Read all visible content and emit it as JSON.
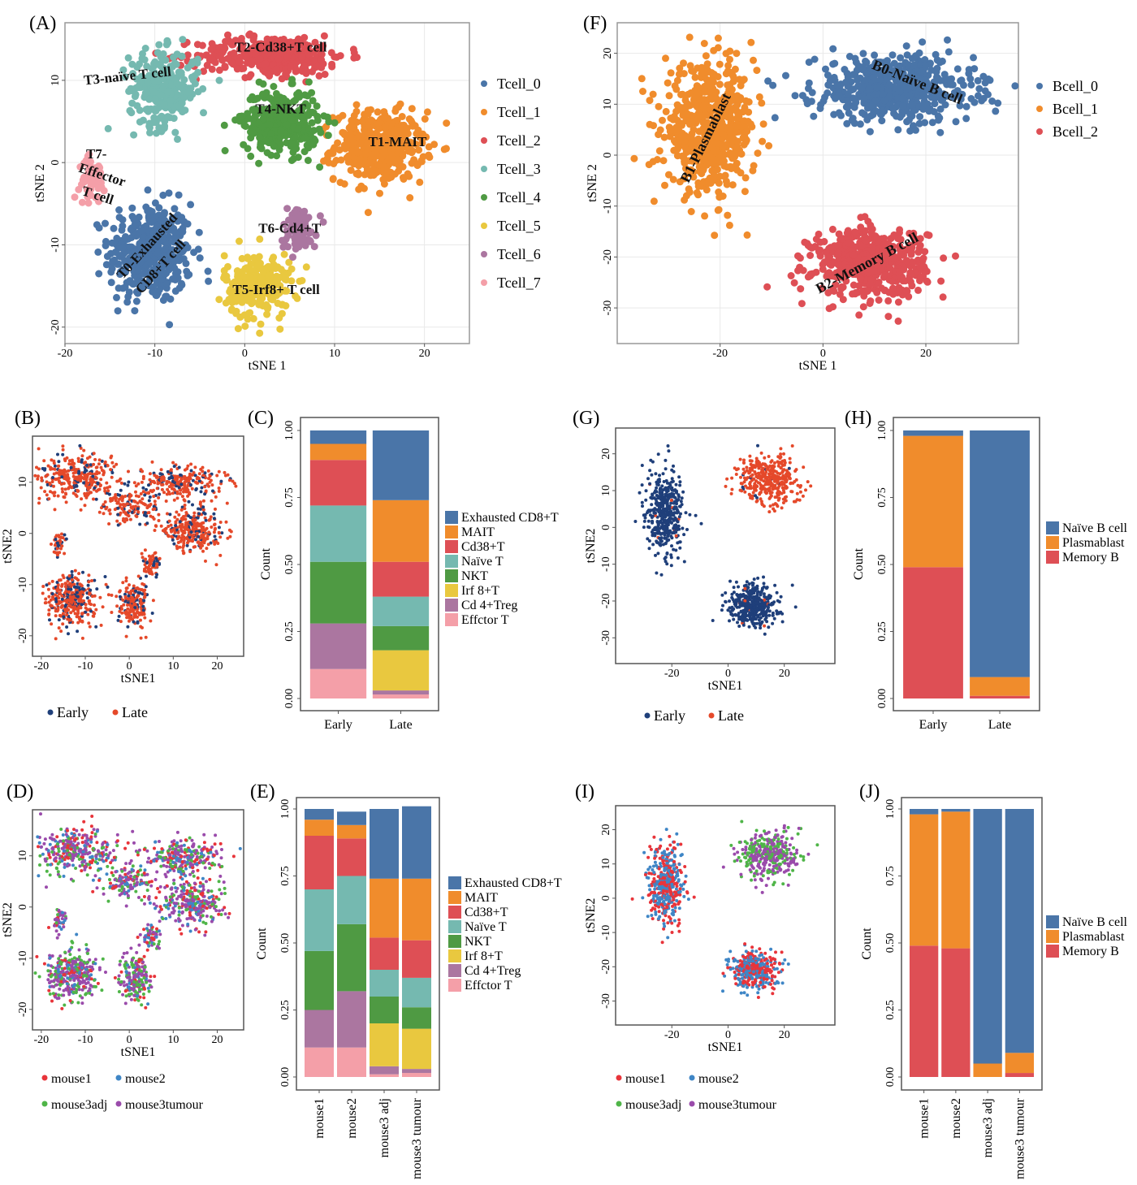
{
  "colors": {
    "tcell": [
      "#4a75a8",
      "#f08c2c",
      "#de4f55",
      "#75b9b0",
      "#4f9a43",
      "#e9c83f",
      "#ab76a0",
      "#f49fa8"
    ],
    "bcell": [
      "#4a75a8",
      "#f08c2c",
      "#de4f55"
    ],
    "early": "#1f3f7a",
    "late": "#e5492a",
    "mouse": [
      "#e8343a",
      "#3f86c6",
      "#4fb548",
      "#9a4bab"
    ]
  },
  "chart_data": [
    {
      "panel": "(A)",
      "type": "scatter",
      "xlabel": "tSNE 1",
      "ylabel": "tSNE 2",
      "xlim": [
        -20,
        25
      ],
      "ylim": [
        -22,
        17
      ],
      "xticks": [
        -20,
        -10,
        0,
        10,
        20
      ],
      "yticks": [
        -20,
        -10,
        0,
        10
      ],
      "legend": [
        "Tcell_0",
        "Tcell_1",
        "Tcell_2",
        "Tcell_3",
        "Tcell_4",
        "Tcell_5",
        "Tcell_6",
        "Tcell_7"
      ],
      "legend_position": "right",
      "clusters": [
        {
          "series": 0,
          "name": "Tcell_0",
          "label": "T0-Exhausted CD8+T cell",
          "center": [
            -10.5,
            -11
          ],
          "spread": [
            4.2,
            5.5
          ],
          "n": 420
        },
        {
          "series": 1,
          "name": "Tcell_1",
          "label": "T1-MAIT",
          "center": [
            15,
            2
          ],
          "spread": [
            4.5,
            3.8
          ],
          "n": 420
        },
        {
          "series": 2,
          "name": "Tcell_2",
          "label": "T2-Cd38+T cell",
          "center": [
            3,
            13
          ],
          "spread": [
            7.5,
            2.2
          ],
          "n": 360
        },
        {
          "series": 3,
          "name": "Tcell_3",
          "label": "T3-naïve T cell",
          "center": [
            -9,
            9
          ],
          "spread": [
            3.5,
            4.2
          ],
          "n": 260
        },
        {
          "series": 4,
          "name": "Tcell_4",
          "label": "T4-NKT",
          "center": [
            4,
            5
          ],
          "spread": [
            3.8,
            3.5
          ],
          "n": 320
        },
        {
          "series": 5,
          "name": "Tcell_5",
          "label": "T5-Irf8+ T cell",
          "center": [
            1.5,
            -15
          ],
          "spread": [
            3.4,
            3.6
          ],
          "n": 230
        },
        {
          "series": 6,
          "name": "Tcell_6",
          "label": "T6-Cd4+T",
          "center": [
            6,
            -8
          ],
          "spread": [
            1.8,
            2.4
          ],
          "n": 90
        },
        {
          "series": 7,
          "name": "Tcell_7",
          "label": "T7-Effector T cell",
          "center": [
            -17,
            -2
          ],
          "spread": [
            1.3,
            2.3
          ],
          "n": 60
        }
      ],
      "labels": [
        {
          "text": "T3-naïve T cell",
          "at": [
            -13,
            10
          ],
          "rotate": -6
        },
        {
          "text": "T2-Cd38+T cell",
          "at": [
            4,
            13.5
          ],
          "rotate": 0
        },
        {
          "text": "T4-NKT",
          "at": [
            4,
            6
          ],
          "rotate": 0
        },
        {
          "text": "T1-MAIT",
          "at": [
            17,
            2
          ],
          "rotate": 0
        },
        {
          "text": "T7-",
          "at": [
            -16.5,
            0.5
          ],
          "rotate": 0
        },
        {
          "text": "Effector",
          "at": [
            -16,
            -2
          ],
          "rotate": 18
        },
        {
          "text": "T cell",
          "at": [
            -16.5,
            -4.5
          ],
          "rotate": 18
        },
        {
          "text": "T6-Cd4+T",
          "at": [
            5,
            -8.5
          ],
          "rotate": 0
        },
        {
          "text": "T0-Exhausted",
          "at": [
            -10.5,
            -10.5
          ],
          "rotate": -48
        },
        {
          "text": "CD8+T cell",
          "at": [
            -9,
            -13
          ],
          "rotate": -48
        },
        {
          "text": "T5-Irf8+ T cell",
          "at": [
            3.5,
            -16
          ],
          "rotate": 0
        }
      ]
    },
    {
      "panel": "(F)",
      "type": "scatter",
      "xlabel": "tSNE 1",
      "ylabel": "tSNE 2",
      "xlim": [
        -40,
        38
      ],
      "ylim": [
        -37,
        26
      ],
      "xticks": [
        -20,
        0,
        20
      ],
      "yticks": [
        -30,
        -20,
        -10,
        0,
        10,
        20
      ],
      "legend": [
        "Bcell_0",
        "Bcell_1",
        "Bcell_2"
      ],
      "legend_position": "right",
      "clusters": [
        {
          "series": 0,
          "name": "Bcell_0",
          "label": "B0-Naïve B cell",
          "center": [
            14,
            13
          ],
          "spread": [
            14,
            6
          ],
          "n": 560
        },
        {
          "series": 1,
          "name": "Bcell_1",
          "label": "B1-Plasmablast",
          "center": [
            -22,
            5
          ],
          "spread": [
            8,
            11
          ],
          "n": 560
        },
        {
          "series": 2,
          "name": "Bcell_2",
          "label": "B2-Memory B cell",
          "center": [
            9,
            -21
          ],
          "spread": [
            10,
            6
          ],
          "n": 520
        }
      ],
      "labels": [
        {
          "text": "B0-Naïve B cell",
          "at": [
            18,
            13.5
          ],
          "rotate": 22
        },
        {
          "text": "B1-Plasmablast",
          "at": [
            -22,
            3
          ],
          "rotate": -64
        },
        {
          "text": "B2-Memory B cell",
          "at": [
            9,
            -22
          ],
          "rotate": -28
        }
      ]
    },
    {
      "panel": "(B)",
      "type": "scatter",
      "xlabel": "tSNE1",
      "ylabel": "tSNE2",
      "xlim": [
        -22,
        26
      ],
      "ylim": [
        -24,
        19
      ],
      "xticks": [
        -20,
        -10,
        0,
        10,
        20
      ],
      "yticks": [
        -20,
        -10,
        0,
        10
      ],
      "legend": [
        "Early",
        "Late"
      ],
      "legend_position": "bottom"
    },
    {
      "panel": "(C)",
      "type": "bar",
      "xlabel": "",
      "ylabel": "Count",
      "ylim": [
        0,
        1
      ],
      "yticks": [
        "0.00",
        "0.25",
        "0.50",
        "0.75",
        "1.00"
      ],
      "categories": [
        "Early",
        "Late"
      ],
      "legend_position": "right",
      "series": [
        {
          "name": "Exhausted CD8+T",
          "values": [
            0.05,
            0.26
          ]
        },
        {
          "name": "MAIT",
          "values": [
            0.06,
            0.23
          ]
        },
        {
          "name": "Cd38+T",
          "values": [
            0.17,
            0.13
          ]
        },
        {
          "name": "Naïve T",
          "values": [
            0.21,
            0.11
          ]
        },
        {
          "name": "NKT",
          "values": [
            0.23,
            0.09
          ]
        },
        {
          "name": "Irf 8+T",
          "values": [
            0.0,
            0.15
          ]
        },
        {
          "name": "Cd 4+Treg",
          "values": [
            0.17,
            0.015
          ]
        },
        {
          "name": "Effctor T",
          "values": [
            0.11,
            0.015
          ]
        }
      ]
    },
    {
      "panel": "(G)",
      "type": "scatter",
      "xlabel": "tSNE1",
      "ylabel": "tSNE2",
      "xlim": [
        -40,
        38
      ],
      "ylim": [
        -37,
        27
      ],
      "xticks": [
        -20,
        0,
        20
      ],
      "yticks": [
        -30,
        -20,
        -10,
        0,
        10,
        20
      ],
      "legend": [
        "Early",
        "Late"
      ],
      "legend_position": "bottom"
    },
    {
      "panel": "(H)",
      "type": "bar",
      "xlabel": "",
      "ylabel": "Count",
      "ylim": [
        0,
        1
      ],
      "yticks": [
        "0.00",
        "0.25",
        "0.50",
        "0.75",
        "1.00"
      ],
      "categories": [
        "Early",
        "Late"
      ],
      "legend_position": "right",
      "series": [
        {
          "name": "Naïve B cell",
          "values": [
            0.02,
            0.92
          ]
        },
        {
          "name": "Plasmablast",
          "values": [
            0.49,
            0.07
          ]
        },
        {
          "name": "Memory B",
          "values": [
            0.49,
            0.01
          ]
        }
      ]
    },
    {
      "panel": "(D)",
      "type": "scatter",
      "xlabel": "tSNE1",
      "ylabel": "tSNE2",
      "xlim": [
        -22,
        26
      ],
      "ylim": [
        -24,
        19
      ],
      "xticks": [
        -20,
        -10,
        0,
        10,
        20
      ],
      "yticks": [
        -20,
        -10,
        0,
        10
      ],
      "legend": [
        "mouse1",
        "mouse2",
        "mouse3adj",
        "mouse3tumour"
      ],
      "legend_position": "bottom"
    },
    {
      "panel": "(E)",
      "type": "bar",
      "xlabel": "",
      "ylabel": "Count",
      "ylim": [
        0,
        1
      ],
      "yticks": [
        "0.00",
        "0.25",
        "0.50",
        "0.75",
        "1.00"
      ],
      "categories": [
        "mouse1",
        "mouse2",
        "mouse3 adj",
        "mouse3 tumour"
      ],
      "legend_position": "right",
      "series": [
        {
          "name": "Exhausted CD8+T",
          "values": [
            0.04,
            0.05,
            0.26,
            0.27
          ]
        },
        {
          "name": "MAIT",
          "values": [
            0.06,
            0.05,
            0.22,
            0.23
          ]
        },
        {
          "name": "Cd38+T",
          "values": [
            0.2,
            0.14,
            0.12,
            0.14
          ]
        },
        {
          "name": "Naïve T",
          "values": [
            0.23,
            0.18,
            0.1,
            0.11
          ]
        },
        {
          "name": "NKT",
          "values": [
            0.22,
            0.25,
            0.1,
            0.08
          ]
        },
        {
          "name": "Irf 8+T",
          "values": [
            0.0,
            0.0,
            0.16,
            0.15
          ]
        },
        {
          "name": "Cd 4+Treg",
          "values": [
            0.14,
            0.21,
            0.03,
            0.015
          ]
        },
        {
          "name": "Effctor T",
          "values": [
            0.11,
            0.11,
            0.01,
            0.015
          ]
        }
      ]
    },
    {
      "panel": "(I)",
      "type": "scatter",
      "xlabel": "tSNE1",
      "ylabel": "tSNE2",
      "xlim": [
        -40,
        38
      ],
      "ylim": [
        -37,
        27
      ],
      "xticks": [
        -20,
        0,
        20
      ],
      "yticks": [
        -30,
        -20,
        -10,
        0,
        10,
        20
      ],
      "legend": [
        "mouse1",
        "mouse2",
        "mouse3adj",
        "mouse3tumour"
      ],
      "legend_position": "bottom"
    },
    {
      "panel": "(J)",
      "type": "bar",
      "xlabel": "",
      "ylabel": "Count",
      "ylim": [
        0,
        1
      ],
      "yticks": [
        "0.00",
        "0.25",
        "0.50",
        "0.75",
        "1.00"
      ],
      "categories": [
        "mouse1",
        "mouse2",
        "mouse3 adj",
        "mouse3 tumour"
      ],
      "legend_position": "right",
      "series": [
        {
          "name": "Naïve B cell",
          "values": [
            0.02,
            0.01,
            0.95,
            0.91
          ]
        },
        {
          "name": "Plasmablast",
          "values": [
            0.49,
            0.51,
            0.05,
            0.075
          ]
        },
        {
          "name": "Memory B",
          "values": [
            0.49,
            0.48,
            0.0,
            0.015
          ]
        }
      ]
    }
  ]
}
